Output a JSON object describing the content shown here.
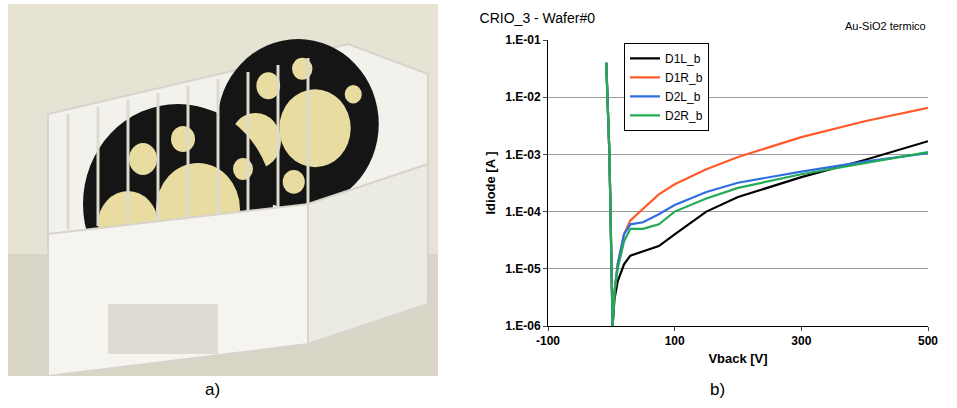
{
  "panel_labels": [
    "a)",
    "b)"
  ],
  "chart_data": {
    "type": "line",
    "title": "CRIO_3 - Wafer#0",
    "annotations": [
      "Au-SiO2 termico"
    ],
    "x_label": "Vback [V]",
    "y_label": "Idiode [A ]",
    "x": [
      -8,
      -6,
      -3,
      2,
      5,
      10,
      20,
      30,
      50,
      75,
      100,
      150,
      200,
      300,
      400,
      500
    ],
    "series": [
      {
        "name": "D1L_b",
        "color": "#000000",
        "values": [
          0.04,
          0.01,
          0.001,
          1e-06,
          3e-06,
          6e-06,
          1.2e-05,
          1.7e-05,
          2e-05,
          2.5e-05,
          4e-05,
          0.0001,
          0.00018,
          0.0004,
          0.0008,
          0.0017
        ]
      },
      {
        "name": "D1R_b",
        "color": "#ff5a2a",
        "values": [
          0.04,
          0.01,
          0.001,
          1e-06,
          4e-06,
          1.2e-05,
          4e-05,
          7e-05,
          0.00011,
          0.0002,
          0.0003,
          0.00055,
          0.0009,
          0.002,
          0.0038,
          0.0065
        ]
      },
      {
        "name": "D2L_b",
        "color": "#2f6fe0",
        "values": [
          0.04,
          0.01,
          0.001,
          1e-06,
          4e-06,
          1.2e-05,
          4e-05,
          6e-05,
          6.5e-05,
          9e-05,
          0.00013,
          0.00022,
          0.00032,
          0.0005,
          0.00075,
          0.00105
        ]
      },
      {
        "name": "D2R_b",
        "color": "#22aa55",
        "values": [
          0.04,
          0.01,
          0.001,
          1e-06,
          4e-06,
          1e-05,
          3e-05,
          5e-05,
          5e-05,
          6e-05,
          0.0001,
          0.00017,
          0.00026,
          0.00045,
          0.0007,
          0.0011
        ]
      }
    ],
    "xlim": [
      -100,
      500
    ],
    "xticks": [
      -100,
      100,
      300,
      500
    ],
    "ylim": [
      1e-06,
      0.1
    ],
    "yticks": [
      {
        "value": 1e-06,
        "label": "1.E-06"
      },
      {
        "value": 1e-05,
        "label": "1.E-05"
      },
      {
        "value": 0.0001,
        "label": "1.E-04"
      },
      {
        "value": 0.001,
        "label": "1.E-03"
      },
      {
        "value": 0.01,
        "label": "1.E-02"
      },
      {
        "value": 0.1,
        "label": "1.E-01"
      }
    ],
    "log": "y",
    "grid": true,
    "legend": "top-left"
  }
}
